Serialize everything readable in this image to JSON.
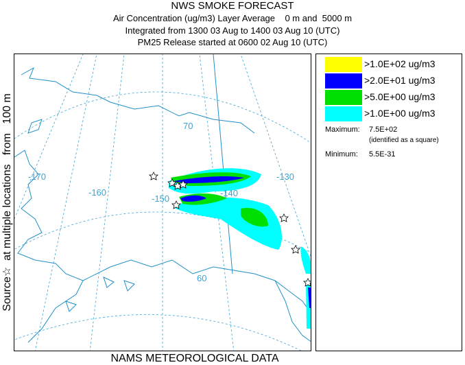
{
  "header": {
    "title": "NWS SMOKE FORECAST",
    "line2": "Air Concentration (ug/m3) Layer Average    0 m and  5000 m",
    "line3": "Integrated from 1300 03 Aug to 1400 03 Aug 10 (UTC)",
    "line4": "PM25 Release started at 0600 02 Aug 10 (UTC)"
  },
  "side_label": "Source☆  at multiple locations   from   100 m",
  "map": {
    "lon_labels": [
      "-170",
      "-160",
      "-150",
      "-140",
      "-130"
    ],
    "lat_labels": [
      "70",
      "60"
    ],
    "colors": {
      "coast": "#1f8fc8",
      "grid": "#3aa3d6",
      "level4": "#ffff00",
      "level3": "#0000ff",
      "level2": "#00e000",
      "level1": "#00ffff"
    }
  },
  "legend": {
    "items": [
      {
        "label": ">1.0E+02 ug/m3",
        "color": "#ffff00"
      },
      {
        "label": ">2.0E+01 ug/m3",
        "color": "#0000ff"
      },
      {
        "label": ">5.0E+00 ug/m3",
        "color": "#00e000"
      },
      {
        "label": ">1.0E+00 ug/m3",
        "color": "#00ffff"
      }
    ],
    "maximum_label": "Maximum:",
    "maximum_value": "7.5E+02",
    "maximum_note": "(identified as a square)",
    "minimum_label": "Minimum:",
    "minimum_value": "5.5E-31"
  },
  "footer": "NAMS METEOROLOGICAL DATA"
}
